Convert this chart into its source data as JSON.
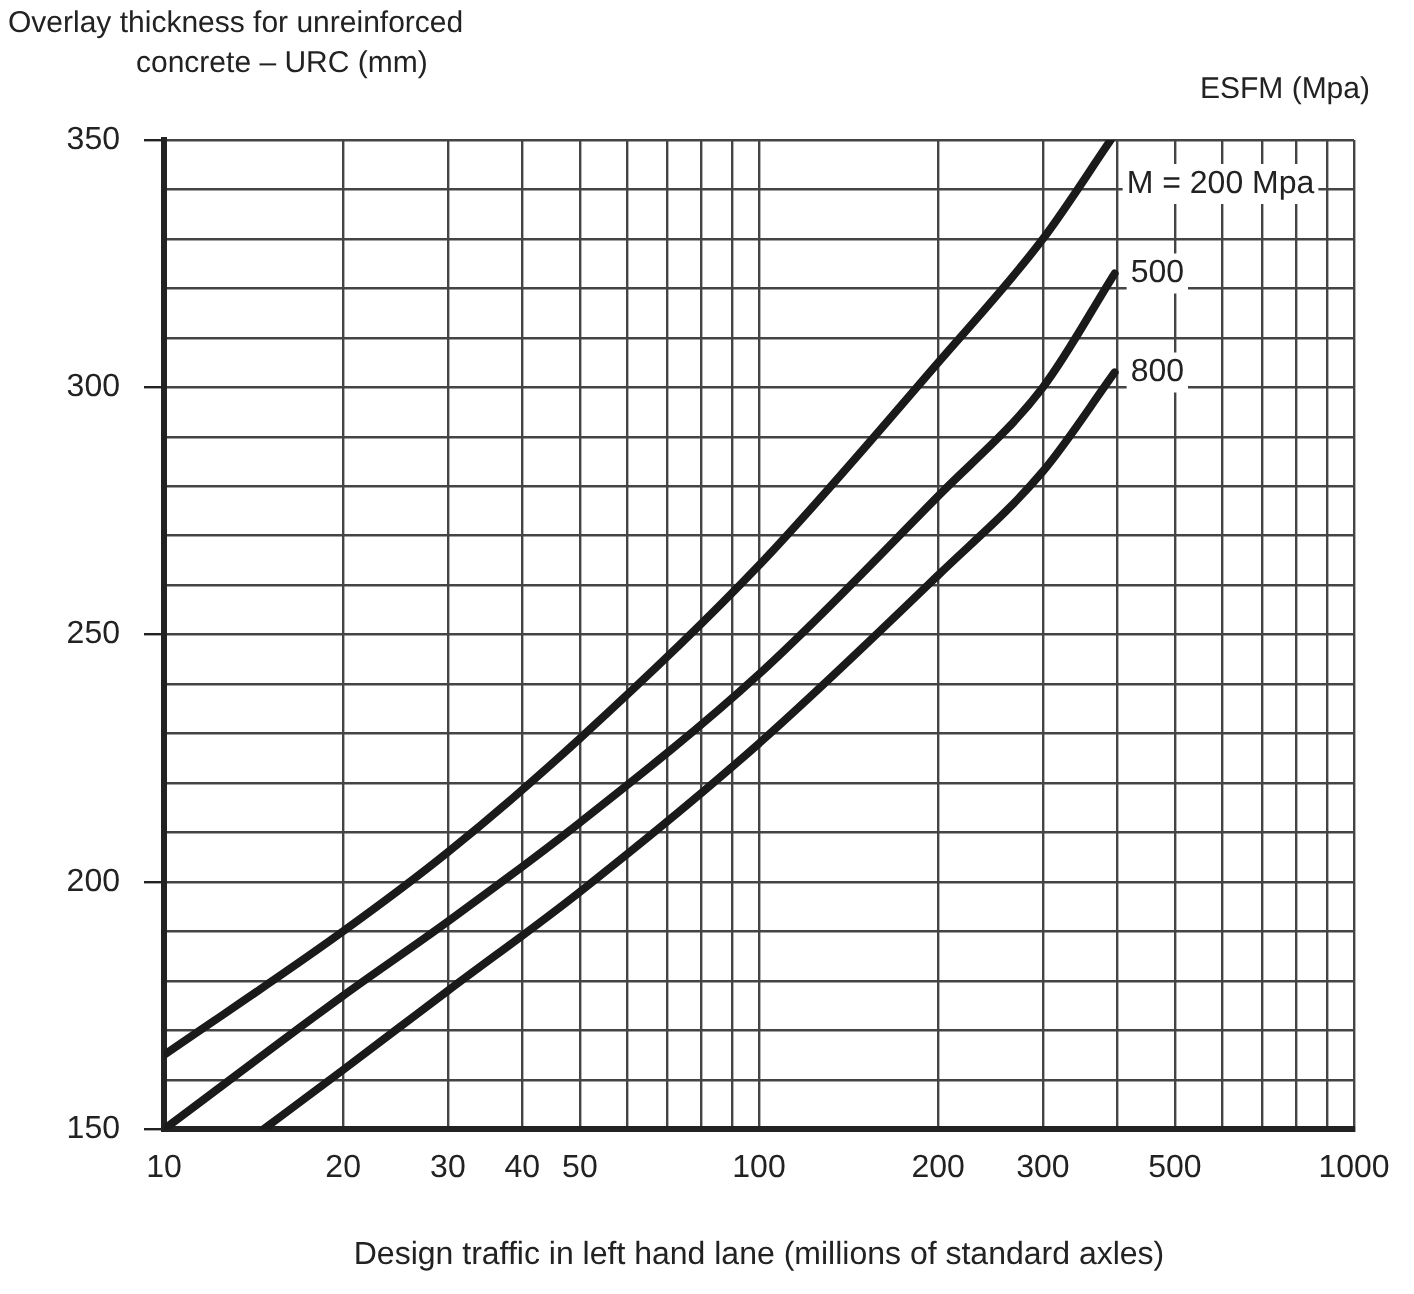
{
  "chart_data": {
    "type": "line",
    "ylabel": "Overlay thickness for unreinforced\nconcrete – URC (mm)",
    "xlabel": "Design traffic in left hand lane (millions of standard axles)",
    "legend_title": "ESFM (Mpa)",
    "log": "x",
    "grid": true,
    "legend": false,
    "marker": "none",
    "line_style": "solid",
    "xlim": [
      10,
      1000
    ],
    "ylim": [
      150,
      350
    ],
    "xticks": [
      10,
      20,
      30,
      40,
      50,
      {
        "value": 60,
        "label": null
      },
      {
        "value": 70,
        "label": null
      },
      {
        "value": 80,
        "label": null
      },
      {
        "value": 90,
        "label": null
      },
      100,
      200,
      300,
      {
        "value": 400,
        "label": null
      },
      500,
      {
        "value": 600,
        "label": null
      },
      {
        "value": 700,
        "label": null
      },
      {
        "value": 800,
        "label": null
      },
      {
        "value": 900,
        "label": null
      },
      1000
    ],
    "yticks": [
      150,
      {
        "value": 160,
        "label": null
      },
      {
        "value": 170,
        "label": null
      },
      {
        "value": 180,
        "label": null
      },
      {
        "value": 190,
        "label": null
      },
      200,
      {
        "value": 210,
        "label": null
      },
      {
        "value": 220,
        "label": null
      },
      {
        "value": 230,
        "label": null
      },
      {
        "value": 240,
        "label": null
      },
      250,
      {
        "value": 260,
        "label": null
      },
      {
        "value": 270,
        "label": null
      },
      {
        "value": 280,
        "label": null
      },
      {
        "value": 290,
        "label": null
      },
      300,
      {
        "value": 310,
        "label": null
      },
      {
        "value": 320,
        "label": null
      },
      {
        "value": 330,
        "label": null
      },
      {
        "value": 340,
        "label": null
      },
      350
    ],
    "series": [
      {
        "name": "M = 200 Mpa",
        "color": "#1a1a1a",
        "x": [
          10,
          20,
          30,
          50,
          100,
          200,
          300,
          390
        ],
        "values": [
          165,
          190,
          206,
          229,
          264,
          305,
          330,
          350
        ]
      },
      {
        "name": "500",
        "color": "#1a1a1a",
        "x": [
          10,
          20,
          30,
          50,
          100,
          200,
          300,
          396
        ],
        "values": [
          150,
          177,
          192,
          212,
          242,
          278,
          300,
          323
        ]
      },
      {
        "name": "800",
        "color": "#1a1a1a",
        "x": [
          14.7,
          20,
          30,
          50,
          100,
          200,
          300,
          396
        ],
        "values": [
          150,
          162,
          178,
          198,
          228,
          262,
          283,
          303
        ]
      }
    ]
  }
}
